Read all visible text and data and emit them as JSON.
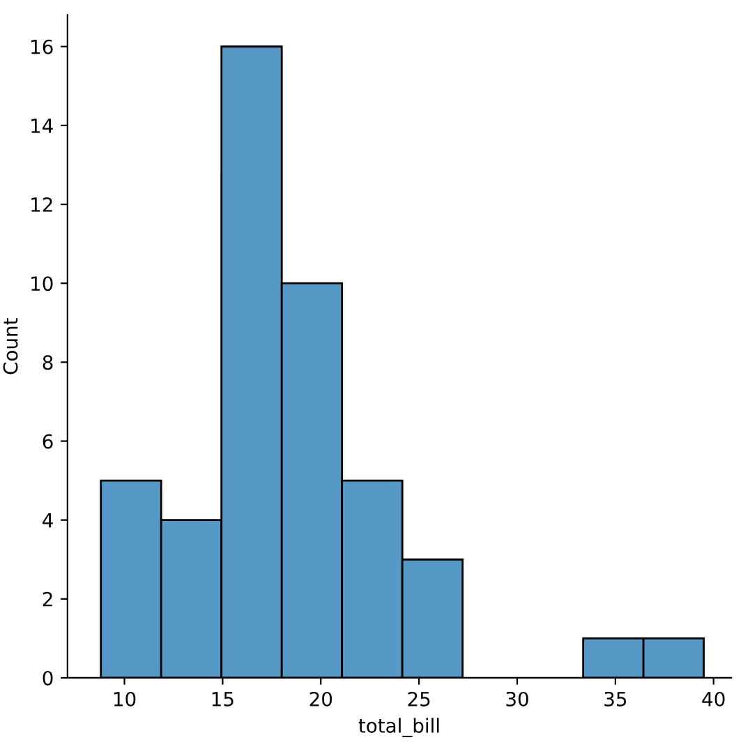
{
  "chart_data": {
    "type": "histogram",
    "xlabel": "total_bill",
    "ylabel": "Count",
    "bins": [
      8.8,
      11.87,
      14.94,
      18.01,
      21.08,
      24.15,
      27.22,
      30.29,
      33.36,
      36.43,
      39.5
    ],
    "values": [
      5,
      4,
      16,
      10,
      5,
      3,
      0,
      0,
      1,
      1
    ],
    "color": "#5799c6",
    "xlim": [
      7.1,
      40.9
    ],
    "ylim": [
      0,
      16.8
    ],
    "xticks": [
      10,
      15,
      20,
      25,
      30,
      35,
      40
    ],
    "yticks": [
      0,
      2,
      4,
      6,
      8,
      10,
      12,
      14,
      16
    ],
    "grid": false
  }
}
